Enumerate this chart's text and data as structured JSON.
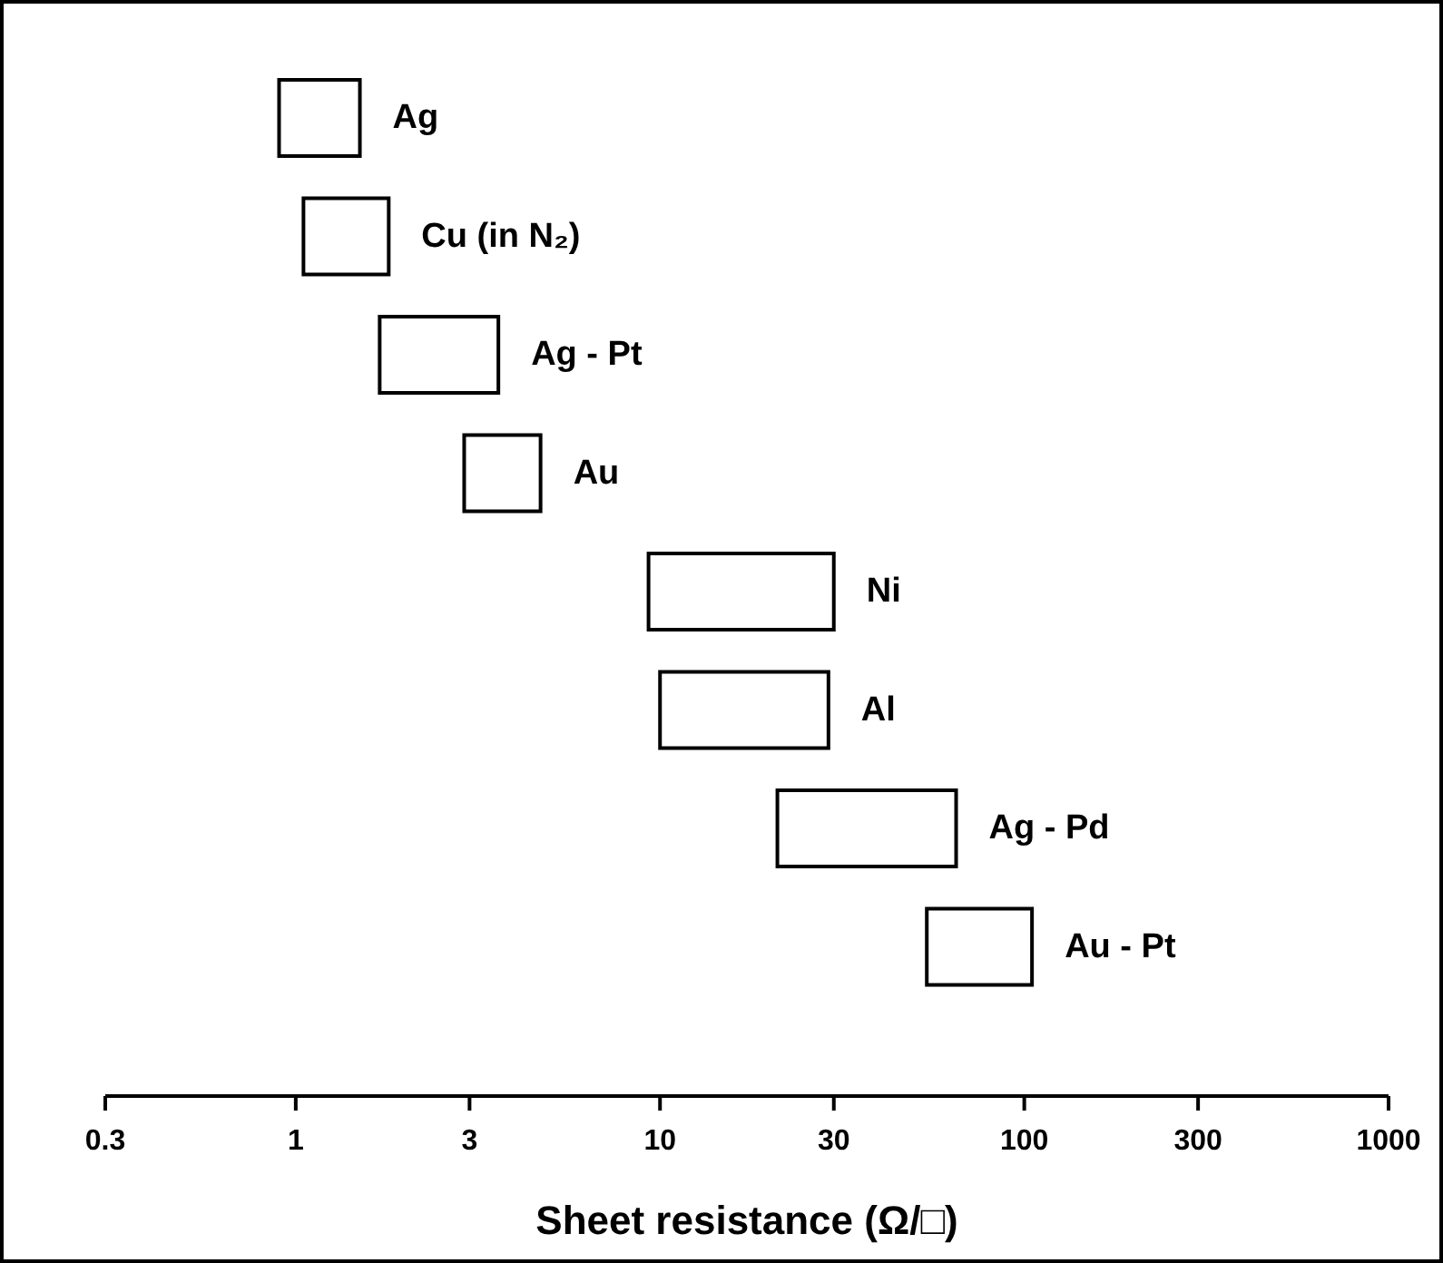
{
  "chart_data": {
    "type": "bar",
    "orientation": "horizontal",
    "xlabel": "Sheet resistance (Ω/□)",
    "categories": [
      "Ag",
      "Cu (in N₂)",
      "Ag - Pt",
      "Au",
      "Ni",
      "Al",
      "Ag - Pd",
      "Au - Pt"
    ],
    "base": [
      0.9,
      1.05,
      1.7,
      2.9,
      9.3,
      10,
      21,
      54
    ],
    "values": [
      0.6,
      0.75,
      1.9,
      1.8,
      20.7,
      19,
      44,
      51
    ],
    "color": "#ffffff",
    "log": "x",
    "xlim": [
      0.3,
      1000
    ],
    "xticks": [
      0.3,
      1,
      3,
      10,
      30,
      100,
      300,
      1000
    ],
    "tick_labels": "x",
    "grid": false
  }
}
